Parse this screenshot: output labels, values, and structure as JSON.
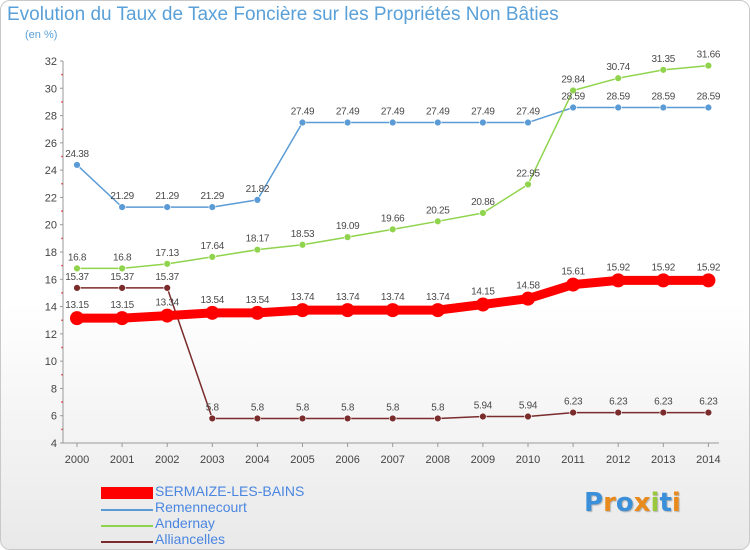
{
  "title": "Evolution du Taux de Taxe Foncière sur les Propriétés Non Bâties",
  "unit_label": "(en %)",
  "logo": {
    "text": "Proxiti",
    "letters": [
      "P",
      "r",
      "o",
      "x",
      "i",
      "t",
      "i"
    ],
    "colors": [
      "#3a8fd8",
      "#e88a1c",
      "#3a8fd8",
      "#e88a1c",
      "#9ac83c",
      "#3a8fd8",
      "#e88a1c"
    ]
  },
  "chart_data": {
    "type": "line",
    "title": "Evolution du Taux de Taxe Foncière sur les Propriétés Non Bâties",
    "ylabel": "(en %)",
    "xlabel": "",
    "x": [
      "2000",
      "2001",
      "2002",
      "2003",
      "2004",
      "2005",
      "2006",
      "2007",
      "2008",
      "2009",
      "2010",
      "2011",
      "2012",
      "2013",
      "2014"
    ],
    "ylim": [
      4,
      32
    ],
    "yticks": [
      4,
      6,
      8,
      10,
      12,
      14,
      16,
      18,
      20,
      22,
      24,
      26,
      28,
      30,
      32
    ],
    "grid": false,
    "legend_position": "bottom-left",
    "series": [
      {
        "name": "SERMAIZE-LES-BAINS",
        "color": "#ff0000",
        "emphasis": true,
        "values": [
          13.15,
          13.15,
          13.34,
          13.54,
          13.54,
          13.74,
          13.74,
          13.74,
          13.74,
          14.15,
          14.58,
          15.61,
          15.92,
          15.92,
          15.92
        ],
        "labels": [
          "13.15",
          "13.15",
          "13.34",
          "13.54",
          "13.54",
          "13.74",
          "13.74",
          "13.74",
          "13.74",
          "14.15",
          "14.58",
          "15.61",
          "15.92",
          "15.92",
          "15.92"
        ]
      },
      {
        "name": "Remennecourt",
        "color": "#5b9bd5",
        "values": [
          24.38,
          21.29,
          21.29,
          21.29,
          21.82,
          27.49,
          27.49,
          27.49,
          27.49,
          27.49,
          27.49,
          28.59,
          28.59,
          28.59,
          28.59
        ],
        "labels": [
          "24.38",
          "21.29",
          "21.29",
          "21.29",
          "21.82",
          "27.49",
          "27.49",
          "27.49",
          "27.49",
          "27.49",
          "27.49",
          "28.59",
          "28.59",
          "28.59",
          "28.59"
        ]
      },
      {
        "name": "Andernay",
        "color": "#8fd44c",
        "values": [
          16.8,
          16.8,
          17.13,
          17.64,
          18.17,
          18.53,
          19.09,
          19.66,
          20.25,
          20.86,
          22.95,
          29.84,
          30.74,
          31.35,
          31.66
        ],
        "labels": [
          "16.8",
          "16.8",
          "17.13",
          "17.64",
          "18.17",
          "18.53",
          "19.09",
          "19.66",
          "20.25",
          "20.86",
          "22.95",
          "29.84",
          "30.74",
          "31.35",
          "31.66"
        ]
      },
      {
        "name": "Alliancelles",
        "color": "#7a2b2b",
        "values": [
          15.37,
          15.37,
          15.37,
          5.8,
          5.8,
          5.8,
          5.8,
          5.8,
          5.8,
          5.94,
          5.94,
          6.23,
          6.23,
          6.23,
          6.23
        ],
        "labels": [
          "15.37",
          "15.37",
          "15.37",
          "5.8",
          "5.8",
          "5.8",
          "5.8",
          "5.8",
          "5.8",
          "5.94",
          "5.94",
          "6.23",
          "6.23",
          "6.23",
          "6.23"
        ]
      }
    ]
  }
}
